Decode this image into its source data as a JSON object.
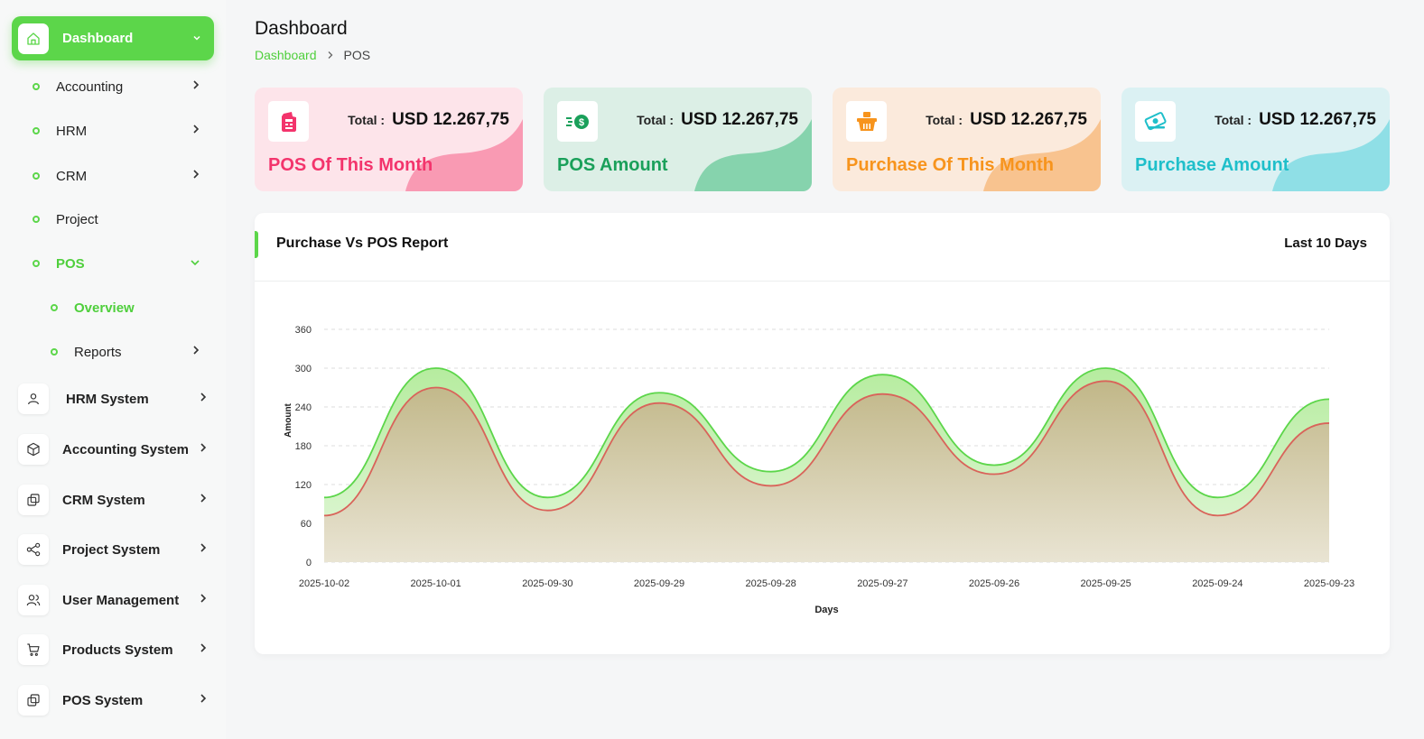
{
  "sidebar": {
    "dashboard": {
      "label": "Dashboard",
      "icon": "home-icon"
    },
    "sub_items": [
      {
        "label": "Accounting",
        "has_arrow": true
      },
      {
        "label": "HRM",
        "has_arrow": true
      },
      {
        "label": "CRM",
        "has_arrow": true
      },
      {
        "label": "Project",
        "has_arrow": false
      },
      {
        "label": "POS",
        "expanded": true
      }
    ],
    "pos_children": [
      {
        "label": "Overview",
        "active": true
      },
      {
        "label": "Reports",
        "has_arrow": true
      }
    ],
    "systems": [
      {
        "label": "HRM System",
        "icon": "user-icon"
      },
      {
        "label": "Accounting System",
        "icon": "box-icon"
      },
      {
        "label": "CRM System",
        "icon": "layers-icon"
      },
      {
        "label": "Project System",
        "icon": "share-icon"
      },
      {
        "label": "User Management",
        "icon": "users-icon"
      },
      {
        "label": "Products System",
        "icon": "cart-icon"
      },
      {
        "label": "POS System",
        "icon": "layers-icon"
      }
    ]
  },
  "header": {
    "title": "Dashboard",
    "breadcrumb": {
      "link": "Dashboard",
      "current": "POS"
    }
  },
  "cards": [
    {
      "total_label": "Total :",
      "total_value": "USD 12.267,75",
      "title": "POS Of This Month",
      "icon": "pos-terminal-icon",
      "accent": "#f3346c",
      "bg": "#fde4ea",
      "wave": "#f99ab3"
    },
    {
      "total_label": "Total :",
      "total_value": "USD 12.267,75",
      "title": "POS Amount",
      "icon": "cash-icon",
      "accent": "#1aa05a",
      "bg": "#dcefe6",
      "wave": "#86d3ad"
    },
    {
      "total_label": "Total :",
      "total_value": "USD 12.267,75",
      "title": "Purchase Of This Month",
      "icon": "basket-icon",
      "accent": "#f7941d",
      "bg": "#fbeadc",
      "wave": "#f8c38f"
    },
    {
      "total_label": "Total :",
      "total_value": "USD 12.267,75",
      "title": "Purchase Amount",
      "icon": "money-icon",
      "accent": "#1fbfca",
      "bg": "#dbf1f3",
      "wave": "#8fdfe6"
    }
  ],
  "report": {
    "title": "Purchase Vs POS Report",
    "range": "Last 10 Days"
  },
  "chart_data": {
    "type": "area",
    "xlabel": "Days",
    "ylabel": "Amount",
    "ylim": [
      0,
      360
    ],
    "yticks": [
      0,
      60,
      120,
      180,
      240,
      300,
      360
    ],
    "categories": [
      "2025-10-02",
      "2025-10-01",
      "2025-09-30",
      "2025-09-29",
      "2025-09-28",
      "2025-09-27",
      "2025-09-26",
      "2025-09-25",
      "2025-09-24",
      "2025-09-23"
    ],
    "series": [
      {
        "values": [
          100,
          300,
          100,
          262,
          140,
          290,
          150,
          300,
          100,
          252
        ],
        "color": "#5cd64a"
      },
      {
        "values": [
          72,
          270,
          80,
          246,
          118,
          260,
          136,
          280,
          72,
          215
        ],
        "color": "#d9635a"
      }
    ],
    "grid": true,
    "legend": "none"
  }
}
